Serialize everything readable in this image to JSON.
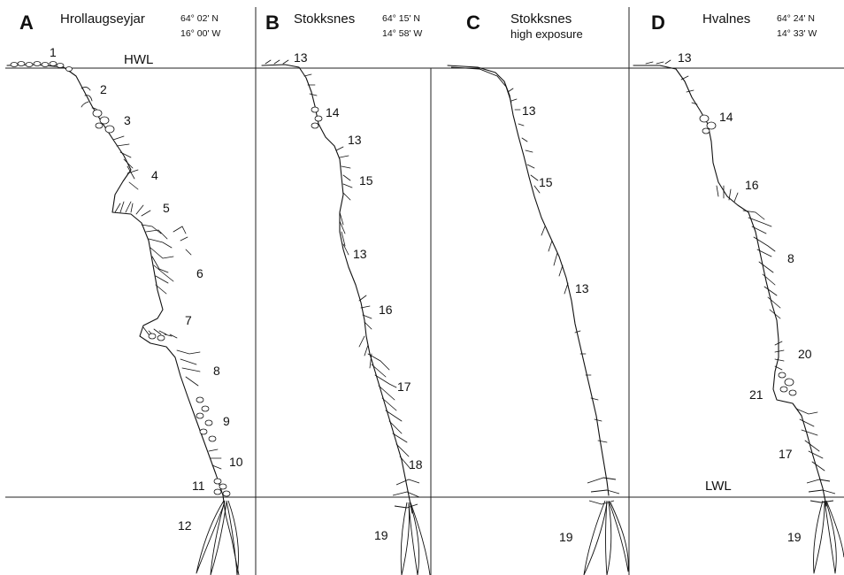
{
  "levels": {
    "hwl": "HWL",
    "lwl": "LWL"
  },
  "panels": [
    {
      "letter": "A",
      "site": "Hrollaugseyjar",
      "coord1": "64° 02' N",
      "coord2": "16° 00' W",
      "zones": [
        "1",
        "2",
        "3",
        "4",
        "5",
        "6",
        "7",
        "8",
        "9",
        "10",
        "11",
        "12"
      ]
    },
    {
      "letter": "B",
      "site": "Stokksnes",
      "coord1": "64° 15' N",
      "coord2": "14° 58' W",
      "zones": [
        "13",
        "14",
        "13",
        "15",
        "13",
        "16",
        "17",
        "18",
        "19"
      ]
    },
    {
      "letter": "C",
      "site": "Stokksnes",
      "subtitle": "high exposure",
      "zones": [
        "13",
        "15",
        "13",
        "19"
      ]
    },
    {
      "letter": "D",
      "site": "Hvalnes",
      "coord1": "64° 24' N",
      "coord2": "14° 33' W",
      "zones": [
        "13",
        "14",
        "16",
        "8",
        "20",
        "21",
        "17",
        "19"
      ]
    }
  ]
}
